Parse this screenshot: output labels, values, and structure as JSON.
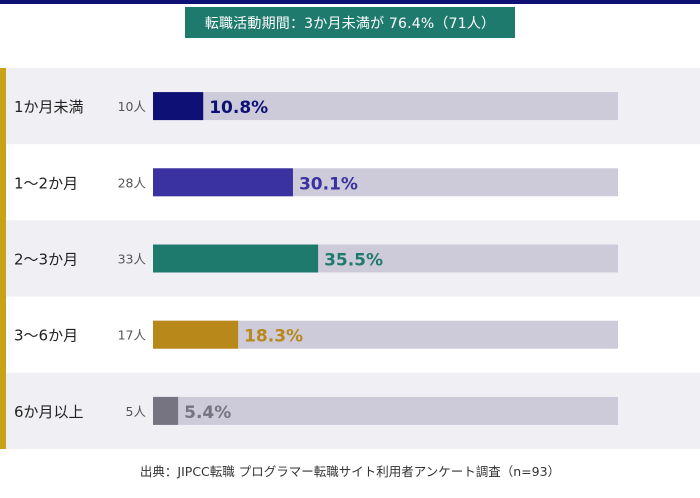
{
  "title": "転職活動期間：3か月未満が 76.4%（71人）",
  "source": "出典：JIPCC転職 プログラマー転職サイト利用者アンケート調査（n=93）",
  "colors": {
    "top_bar": "#0f1075",
    "title_bg": "#1f7a6e",
    "accent": "#c9a21a",
    "track": "#cdcbda",
    "row_band": "#f0f0f4"
  },
  "chart_data": {
    "type": "bar",
    "orientation": "horizontal",
    "categories": [
      "1か月未満",
      "1〜2か月",
      "2〜3か月",
      "3〜6か月",
      "6か月以上"
    ],
    "counts": [
      "10人",
      "28人",
      "33人",
      "17人",
      "5人"
    ],
    "values": [
      10.8,
      30.1,
      35.5,
      18.3,
      5.4
    ],
    "value_labels": [
      "10.8%",
      "30.1%",
      "35.5%",
      "18.3%",
      "5.4%"
    ],
    "xlim": [
      0,
      100
    ],
    "bar_colors": [
      "#0f1075",
      "#3a32a0",
      "#1f7a6e",
      "#b8891a",
      "#757480"
    ]
  }
}
